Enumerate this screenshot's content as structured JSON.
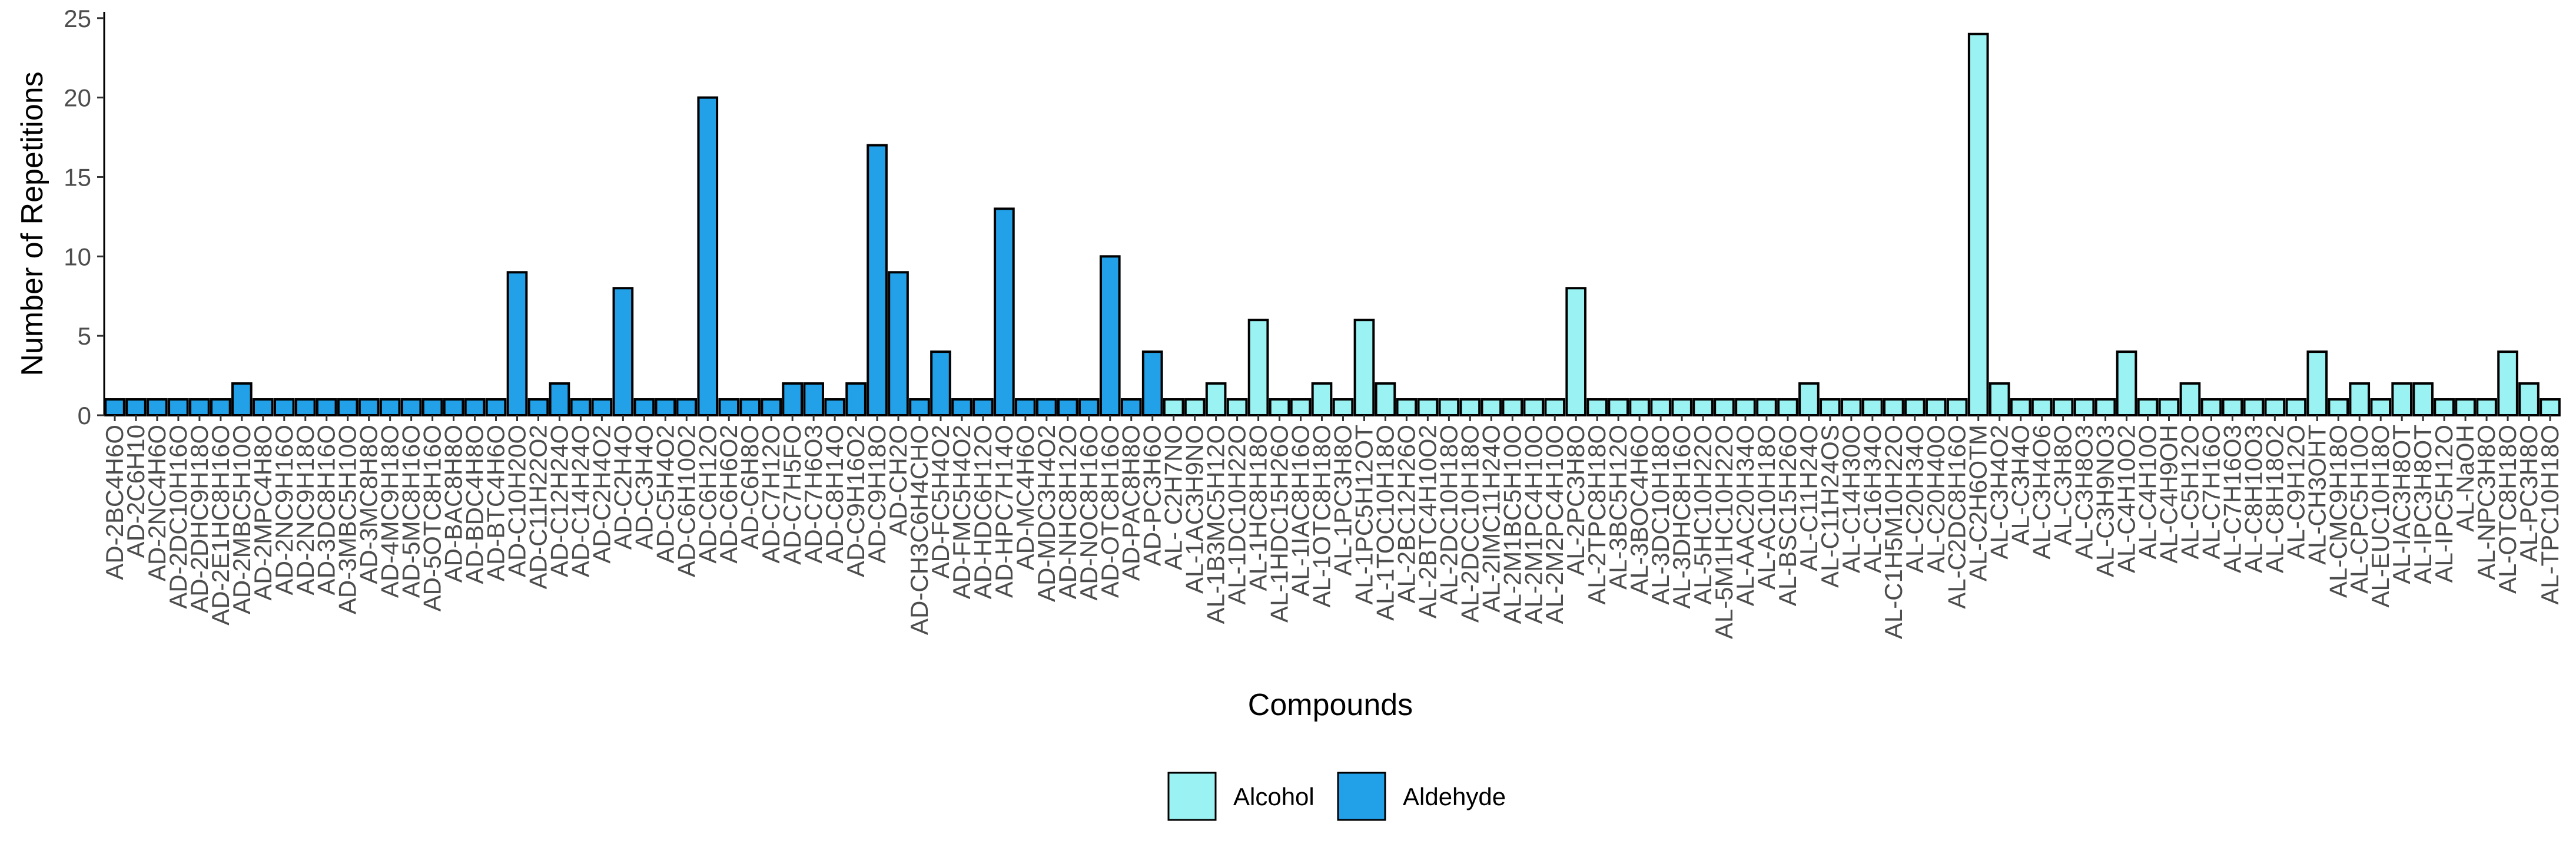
{
  "chart_data": {
    "type": "bar",
    "title": "",
    "xlabel": "Compounds",
    "ylabel": "Number of Repetitions",
    "ylim": [
      0,
      25.4
    ],
    "yticks": [
      0,
      5,
      10,
      15,
      20,
      25
    ],
    "grid": false,
    "legend_position": "bottom",
    "legend": [
      {
        "name": "Alcohol",
        "color": "#9bf2f2"
      },
      {
        "name": "Aldehyde",
        "color": "#22a0e8"
      }
    ],
    "colors": {
      "Alcohol": "#9bf2f2",
      "Aldehyde": "#22a0e8",
      "outline": "#000000"
    },
    "categories": [
      "AD-2BC4H6O",
      "AD-2C6H10",
      "AD-2NC4H6O",
      "AD-2DC10H16O",
      "AD-2DHC9H18O",
      "AD-2E1HC8H16O",
      "AD-2MBC5H10O",
      "AD-2MPC4H8O",
      "AD-2NC9H16O",
      "AD-2NC9H18O",
      "AD-3DC8H16O",
      "AD-3MBC5H10O",
      "AD-3MC8H8O",
      "AD-4MC9H18O",
      "AD-5MC8H16O",
      "AD-5OTC8H16O",
      "AD-BAC8H8O",
      "AD-BDC4H8O",
      "AD-BTC4H6O",
      "AD-C10H20O",
      "AD-C11H22O2",
      "AD-C12H24O",
      "AD-C14H24O",
      "AD-C2H4O2",
      "AD-C2H4O",
      "AD-C3H4O",
      "AD-C5H4O2",
      "AD-C6H10O2",
      "AD-C6H12O",
      "AD-C6H6O2",
      "AD-C6H8O",
      "AD-C7H12O",
      "AD-C7H5FO",
      "AD-C7H6O3",
      "AD-C8H14O",
      "AD-C9H16O2",
      "AD-C9H18O",
      "AD-CH2O",
      "AD-CH3C6H4CHO",
      "AD-FC5H4O2",
      "AD-FMC5H4O2",
      "AD-HDC6H12O",
      "AD-HPC7H14O",
      "AD-MC4H6O",
      "AD-MDC3H4O2",
      "AD-NHC8H12O",
      "AD-NOC8H16O",
      "AD-OTC8H16O",
      "AD-PAC8H8O",
      "AD-PC3H6O",
      "AL- C2H7NO",
      "AL-1AC3H9NO",
      "AL-1B3MC5H12O",
      "AL-1DC10H22O",
      "AL-1HC8H18O",
      "AL-1HDC15H26O",
      "AL-1IAC8H16O",
      "AL-1OTC8H18O",
      "AL-1PC3H8O",
      "AL-1PC5H12OT",
      "AL-1TOC10H18O",
      "AL-2BC12H26O",
      "AL-2BTC4H10O2",
      "AL-2DC10H18O",
      "AL-2DCC10H18O",
      "AL-2IMC11H24O",
      "AL-2M1BC5H10O",
      "AL-2M1PC4H10O",
      "AL-2M2PC4H10O",
      "AL-2PC3H8O",
      "AL-2TPC8H18O",
      "AL-3BC5H12O",
      "AL-3BOC4H6O",
      "AL-3DC10H18O",
      "AL-3DHC8H16O",
      "AL-5HC10H22O",
      "AL-5M1HC10H22O",
      "AL-AAC20H34O",
      "AL-AC10H18O",
      "AL-BSC15H26O",
      "AL-C11H24O",
      "AL-C11H24OS",
      "AL-C14H30O",
      "AL-C16H34O",
      "AL-C1H5M10H22O",
      "AL-C20H34O",
      "AL-C20H40O",
      "AL-C2DC8H16O",
      "AL-C2H6OTM",
      "AL-C3H4O2",
      "AL-C3H4O",
      "AL-C3H4O6",
      "AL-C3H8O",
      "AL-C3H8O3",
      "AL-C3H9NO3",
      "AL-C4H10O2",
      "AL-C4H10O",
      "AL-C4H9OH",
      "AL-C5H12O",
      "AL-C7H16O",
      "AL-C7H16O3",
      "AL-C8H10O3",
      "AL-C8H18O2",
      "AL-C9H12O",
      "AL-CH3OHT",
      "AL-CMC9H18O",
      "AL-CPC5H10O",
      "AL-EUC10H18O",
      "AL-IAC3H8OT",
      "AL-IPC3H8OT",
      "AL-IPC5H12O",
      "AL-NaOH",
      "AL-NPC3H8O",
      "AL-OTC8H18O",
      "AL-PC3H8O",
      "AL-TPC10H18O"
    ],
    "values": [
      1,
      1,
      1,
      1,
      1,
      1,
      2,
      1,
      1,
      1,
      1,
      1,
      1,
      1,
      1,
      1,
      1,
      1,
      1,
      9,
      1,
      2,
      1,
      1,
      8,
      1,
      1,
      1,
      20,
      1,
      1,
      1,
      2,
      2,
      1,
      2,
      17,
      9,
      1,
      4,
      1,
      1,
      13,
      1,
      1,
      1,
      1,
      10,
      1,
      4,
      1,
      1,
      2,
      1,
      6,
      1,
      1,
      2,
      1,
      6,
      2,
      1,
      1,
      1,
      1,
      1,
      1,
      1,
      1,
      8,
      1,
      1,
      1,
      1,
      1,
      1,
      1,
      1,
      1,
      1,
      2,
      1,
      1,
      1,
      1,
      1,
      1,
      1,
      24,
      2,
      1,
      1,
      1,
      1,
      1,
      4,
      1,
      1,
      2,
      1,
      1,
      1,
      1,
      1,
      4,
      1,
      2,
      1,
      2,
      2,
      1,
      1,
      1,
      4,
      2,
      1
    ],
    "groups": [
      "Aldehyde",
      "Aldehyde",
      "Aldehyde",
      "Aldehyde",
      "Aldehyde",
      "Aldehyde",
      "Aldehyde",
      "Aldehyde",
      "Aldehyde",
      "Aldehyde",
      "Aldehyde",
      "Aldehyde",
      "Aldehyde",
      "Aldehyde",
      "Aldehyde",
      "Aldehyde",
      "Aldehyde",
      "Aldehyde",
      "Aldehyde",
      "Aldehyde",
      "Aldehyde",
      "Aldehyde",
      "Aldehyde",
      "Aldehyde",
      "Aldehyde",
      "Aldehyde",
      "Aldehyde",
      "Aldehyde",
      "Aldehyde",
      "Aldehyde",
      "Aldehyde",
      "Aldehyde",
      "Aldehyde",
      "Aldehyde",
      "Aldehyde",
      "Aldehyde",
      "Aldehyde",
      "Aldehyde",
      "Aldehyde",
      "Aldehyde",
      "Aldehyde",
      "Aldehyde",
      "Aldehyde",
      "Aldehyde",
      "Aldehyde",
      "Aldehyde",
      "Aldehyde",
      "Aldehyde",
      "Aldehyde",
      "Aldehyde",
      "Alcohol",
      "Alcohol",
      "Alcohol",
      "Alcohol",
      "Alcohol",
      "Alcohol",
      "Alcohol",
      "Alcohol",
      "Alcohol",
      "Alcohol",
      "Alcohol",
      "Alcohol",
      "Alcohol",
      "Alcohol",
      "Alcohol",
      "Alcohol",
      "Alcohol",
      "Alcohol",
      "Alcohol",
      "Alcohol",
      "Alcohol",
      "Alcohol",
      "Alcohol",
      "Alcohol",
      "Alcohol",
      "Alcohol",
      "Alcohol",
      "Alcohol",
      "Alcohol",
      "Alcohol",
      "Alcohol",
      "Alcohol",
      "Alcohol",
      "Alcohol",
      "Alcohol",
      "Alcohol",
      "Alcohol",
      "Alcohol",
      "Alcohol",
      "Alcohol",
      "Alcohol",
      "Alcohol",
      "Alcohol",
      "Alcohol",
      "Alcohol",
      "Alcohol",
      "Alcohol",
      "Alcohol",
      "Alcohol",
      "Alcohol",
      "Alcohol",
      "Alcohol",
      "Alcohol",
      "Alcohol",
      "Alcohol",
      "Alcohol",
      "Alcohol",
      "Alcohol",
      "Alcohol",
      "Alcohol",
      "Alcohol",
      "Alcohol",
      "Alcohol",
      "Alcohol",
      "Alcohol",
      "Alcohol"
    ]
  }
}
